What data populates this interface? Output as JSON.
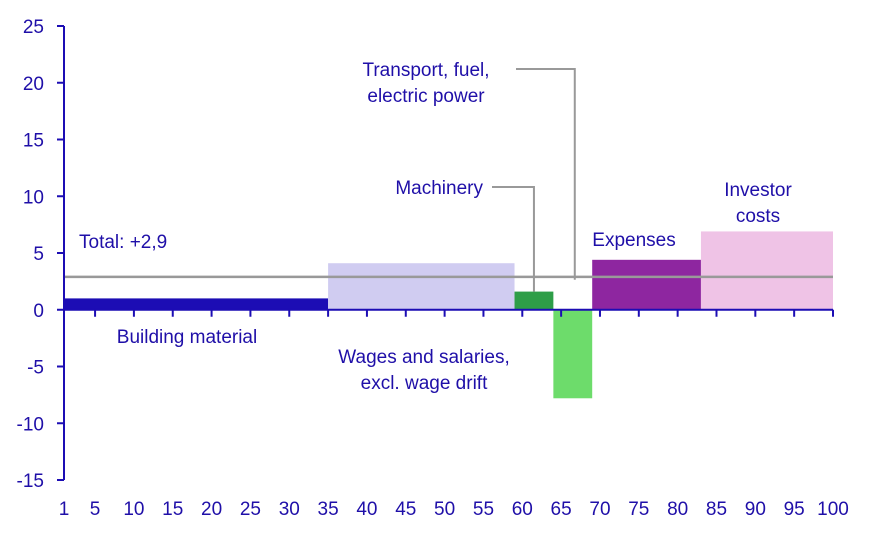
{
  "chart_data": {
    "type": "bar",
    "title": "",
    "xlabel": "",
    "ylabel": "",
    "xlim": [
      1,
      100
    ],
    "ylim": [
      -15,
      25
    ],
    "grid": false,
    "legend": "none",
    "x_ticks": [
      1,
      5,
      10,
      15,
      20,
      25,
      30,
      35,
      40,
      45,
      50,
      55,
      60,
      65,
      70,
      75,
      80,
      85,
      90,
      95,
      100
    ],
    "y_ticks": [
      25,
      20,
      15,
      10,
      5,
      0,
      -5,
      -10,
      -15
    ],
    "y_tick_labels": [
      "25",
      "20",
      "15",
      "10",
      "5",
      "0",
      "-5",
      "-10",
      "-15"
    ],
    "segments": [
      {
        "label": "Building material",
        "x_start": 1,
        "x_end": 35,
        "value": 1.0,
        "color": "#1c0db4"
      },
      {
        "label": "Wages and salaries, excl. wage drift",
        "x_start": 35,
        "x_end": 59,
        "value": 4.1,
        "color": "#d0ccf1"
      },
      {
        "label": "Machinery",
        "x_start": 59,
        "x_end": 64,
        "value": 1.6,
        "color": "#2e9e48"
      },
      {
        "label": "Transport, fuel, electric power",
        "x_start": 64,
        "x_end": 69,
        "value": -7.8,
        "color": "#6ddc6b"
      },
      {
        "label": "Expenses",
        "x_start": 69,
        "x_end": 83,
        "value": 4.4,
        "color": "#8e26a0"
      },
      {
        "label": "Investor costs",
        "x_start": 83,
        "x_end": 100,
        "value": 6.9,
        "color": "#efc3e6"
      }
    ],
    "total": {
      "label": "Total: +2,9",
      "value": 2.9,
      "color": "#999999"
    },
    "annotations": {
      "building_line1": "Building material",
      "wages_line1": "Wages and salaries,",
      "wages_line2": "excl. wage drift",
      "machinery": "Machinery",
      "transport_line1": "Transport, fuel,",
      "transport_line2": "electric power",
      "expenses": "Expenses",
      "investor_line1": "Investor",
      "investor_line2": "costs"
    },
    "axis_color": "#1c0db4",
    "label_color": "#1f0fa8",
    "connector_color": "#999999"
  }
}
